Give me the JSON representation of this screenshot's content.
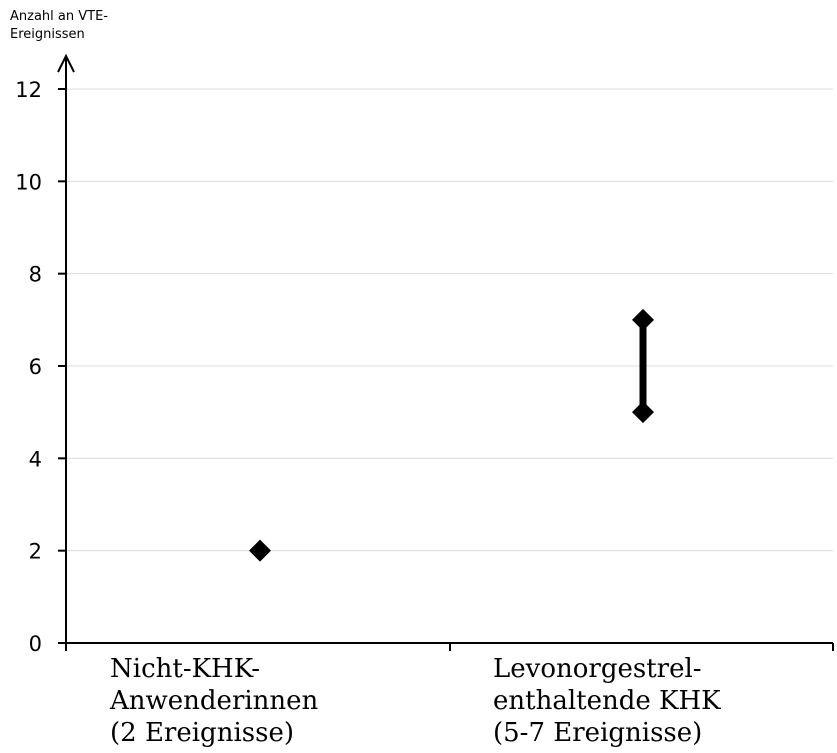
{
  "chart_data": {
    "type": "scatter",
    "ylabel_lines": [
      "Anzahl an VTE-",
      "Ereignissen"
    ],
    "ylim": [
      0,
      12
    ],
    "yticks": [
      0,
      2,
      4,
      6,
      8,
      10,
      12
    ],
    "grid": true,
    "categories": [
      {
        "lines": [
          "Nicht-KHK-",
          "Anwenderinnen",
          "(2 Ereignisse)"
        ]
      },
      {
        "lines": [
          "Levonorgestrel-",
          "enthaltende KHK",
          "(5-7 Ereignisse)"
        ]
      }
    ],
    "points": [
      {
        "category": 0,
        "low": 2,
        "high": 2
      },
      {
        "category": 1,
        "low": 5,
        "high": 7
      }
    ],
    "marker_color": "#000000"
  }
}
